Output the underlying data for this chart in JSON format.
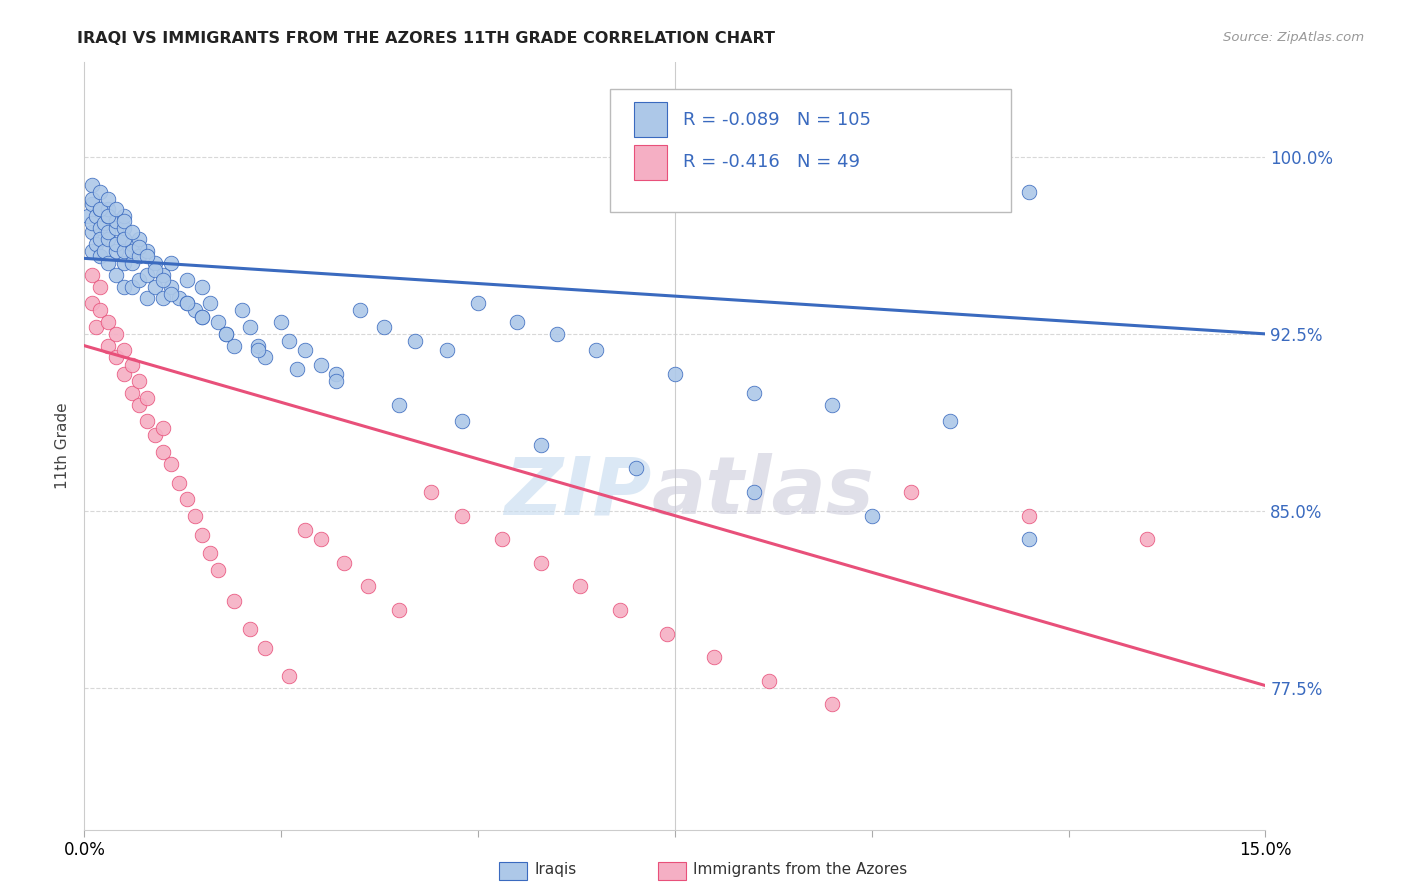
{
  "title": "IRAQI VS IMMIGRANTS FROM THE AZORES 11TH GRADE CORRELATION CHART",
  "source": "Source: ZipAtlas.com",
  "ylabel": "11th Grade",
  "yaxis_labels": [
    "100.0%",
    "92.5%",
    "85.0%",
    "77.5%"
  ],
  "yaxis_values": [
    1.0,
    0.925,
    0.85,
    0.775
  ],
  "xmin": 0.0,
  "xmax": 0.15,
  "ymin": 0.715,
  "ymax": 1.04,
  "legend_R_iraqi": "-0.089",
  "legend_N_iraqi": "105",
  "legend_R_azores": "-0.416",
  "legend_N_azores": "49",
  "color_iraqi": "#adc8e8",
  "color_azores": "#f5afc4",
  "line_color_iraqi": "#3a6abf",
  "line_color_azores": "#e8507a",
  "legend_text_color": "#3a6abf",
  "watermark_zip": "ZIP",
  "watermark_atlas": "atlas",
  "background_color": "#ffffff",
  "grid_color": "#d8d8d8",
  "iraqi_line_x0": 0.0,
  "iraqi_line_x1": 0.15,
  "iraqi_line_y0": 0.957,
  "iraqi_line_y1": 0.925,
  "azores_line_x0": 0.0,
  "azores_line_x1": 0.15,
  "azores_line_y0": 0.92,
  "azores_line_y1": 0.776,
  "iraqi_x": [
    0.0005,
    0.001,
    0.001,
    0.001,
    0.001,
    0.0015,
    0.0015,
    0.002,
    0.002,
    0.002,
    0.002,
    0.0025,
    0.0025,
    0.003,
    0.003,
    0.003,
    0.003,
    0.003,
    0.004,
    0.004,
    0.004,
    0.004,
    0.004,
    0.005,
    0.005,
    0.005,
    0.005,
    0.005,
    0.005,
    0.006,
    0.006,
    0.006,
    0.006,
    0.007,
    0.007,
    0.007,
    0.008,
    0.008,
    0.008,
    0.009,
    0.009,
    0.01,
    0.01,
    0.011,
    0.011,
    0.012,
    0.013,
    0.013,
    0.014,
    0.015,
    0.015,
    0.016,
    0.017,
    0.018,
    0.019,
    0.02,
    0.021,
    0.022,
    0.023,
    0.025,
    0.026,
    0.028,
    0.03,
    0.032,
    0.035,
    0.038,
    0.042,
    0.046,
    0.05,
    0.055,
    0.06,
    0.065,
    0.075,
    0.085,
    0.095,
    0.11,
    0.12,
    0.001,
    0.001,
    0.002,
    0.002,
    0.003,
    0.003,
    0.004,
    0.005,
    0.005,
    0.006,
    0.007,
    0.008,
    0.009,
    0.01,
    0.011,
    0.013,
    0.015,
    0.018,
    0.022,
    0.027,
    0.032,
    0.04,
    0.048,
    0.058,
    0.07,
    0.085,
    0.1,
    0.12
  ],
  "iraqi_y": [
    0.975,
    0.968,
    0.96,
    0.98,
    0.972,
    0.975,
    0.963,
    0.97,
    0.958,
    0.978,
    0.965,
    0.972,
    0.96,
    0.965,
    0.975,
    0.955,
    0.968,
    0.978,
    0.96,
    0.97,
    0.95,
    0.963,
    0.973,
    0.965,
    0.955,
    0.945,
    0.97,
    0.96,
    0.975,
    0.963,
    0.955,
    0.945,
    0.96,
    0.958,
    0.948,
    0.965,
    0.95,
    0.94,
    0.96,
    0.955,
    0.945,
    0.95,
    0.94,
    0.945,
    0.955,
    0.94,
    0.938,
    0.948,
    0.935,
    0.945,
    0.932,
    0.938,
    0.93,
    0.925,
    0.92,
    0.935,
    0.928,
    0.92,
    0.915,
    0.93,
    0.922,
    0.918,
    0.912,
    0.908,
    0.935,
    0.928,
    0.922,
    0.918,
    0.938,
    0.93,
    0.925,
    0.918,
    0.908,
    0.9,
    0.895,
    0.888,
    0.985,
    0.988,
    0.982,
    0.985,
    0.978,
    0.982,
    0.975,
    0.978,
    0.973,
    0.965,
    0.968,
    0.962,
    0.958,
    0.952,
    0.948,
    0.942,
    0.938,
    0.932,
    0.925,
    0.918,
    0.91,
    0.905,
    0.895,
    0.888,
    0.878,
    0.868,
    0.858,
    0.848,
    0.838
  ],
  "azores_x": [
    0.001,
    0.001,
    0.0015,
    0.002,
    0.002,
    0.003,
    0.003,
    0.004,
    0.004,
    0.005,
    0.005,
    0.006,
    0.006,
    0.007,
    0.007,
    0.008,
    0.008,
    0.009,
    0.01,
    0.01,
    0.011,
    0.012,
    0.013,
    0.014,
    0.015,
    0.016,
    0.017,
    0.019,
    0.021,
    0.023,
    0.026,
    0.028,
    0.03,
    0.033,
    0.036,
    0.04,
    0.044,
    0.048,
    0.053,
    0.058,
    0.063,
    0.068,
    0.074,
    0.08,
    0.087,
    0.095,
    0.105,
    0.12,
    0.135
  ],
  "azores_y": [
    0.938,
    0.95,
    0.928,
    0.935,
    0.945,
    0.92,
    0.93,
    0.915,
    0.925,
    0.908,
    0.918,
    0.9,
    0.912,
    0.895,
    0.905,
    0.888,
    0.898,
    0.882,
    0.875,
    0.885,
    0.87,
    0.862,
    0.855,
    0.848,
    0.84,
    0.832,
    0.825,
    0.812,
    0.8,
    0.792,
    0.78,
    0.842,
    0.838,
    0.828,
    0.818,
    0.808,
    0.858,
    0.848,
    0.838,
    0.828,
    0.818,
    0.808,
    0.798,
    0.788,
    0.778,
    0.768,
    0.858,
    0.848,
    0.838
  ]
}
